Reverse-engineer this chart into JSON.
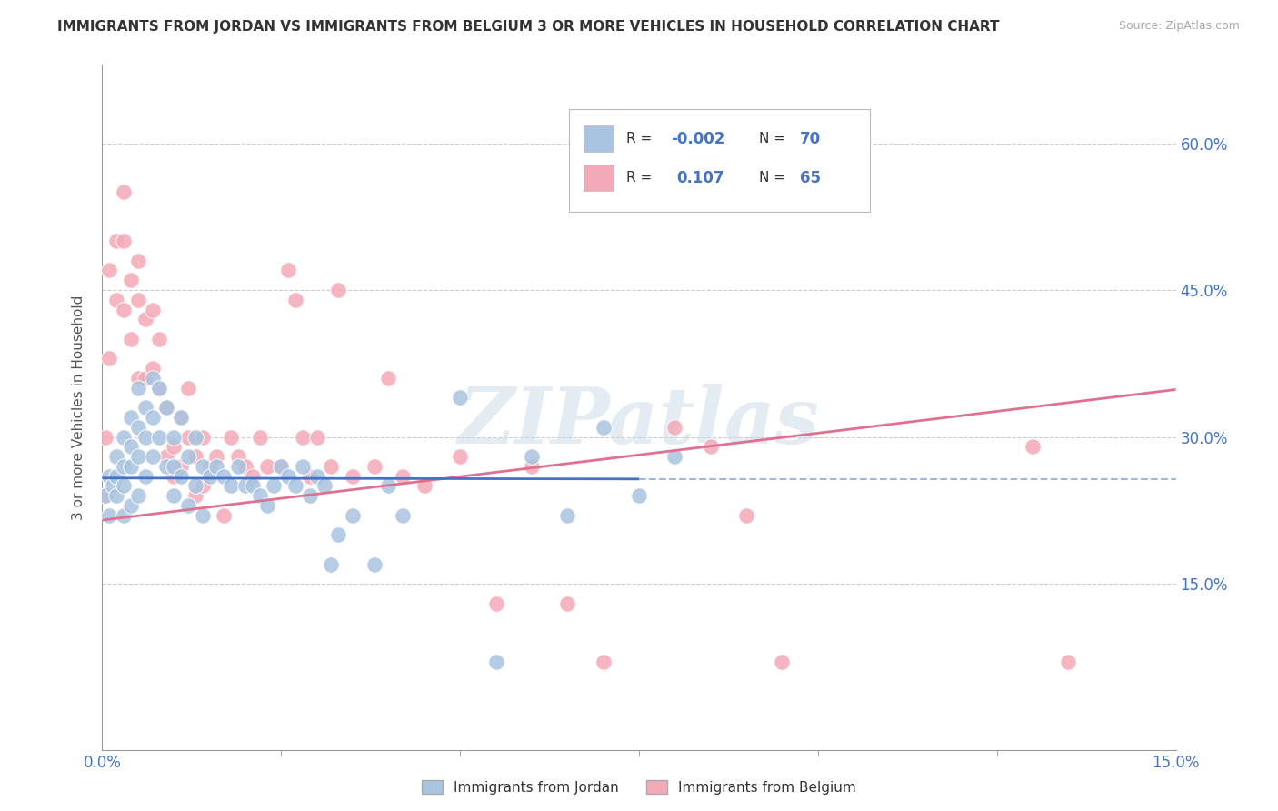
{
  "title": "IMMIGRANTS FROM JORDAN VS IMMIGRANTS FROM BELGIUM 3 OR MORE VEHICLES IN HOUSEHOLD CORRELATION CHART",
  "source": "Source: ZipAtlas.com",
  "ylabel": "3 or more Vehicles in Household",
  "y_tick_labels": [
    "15.0%",
    "30.0%",
    "45.0%",
    "60.0%"
  ],
  "y_tick_positions": [
    0.15,
    0.3,
    0.45,
    0.6
  ],
  "xlim": [
    0.0,
    0.15
  ],
  "ylim": [
    -0.02,
    0.68
  ],
  "jordan_color": "#a8c4e0",
  "belgium_color": "#f4a9b8",
  "jordan_R": "-0.002",
  "jordan_N": "70",
  "belgium_R": "0.107",
  "belgium_N": "65",
  "watermark": "ZIPatlas",
  "legend_jordan": "Immigrants from Jordan",
  "legend_belgium": "Immigrants from Belgium",
  "jordan_points_x": [
    0.0005,
    0.001,
    0.001,
    0.0015,
    0.002,
    0.002,
    0.002,
    0.003,
    0.003,
    0.003,
    0.003,
    0.004,
    0.004,
    0.004,
    0.004,
    0.005,
    0.005,
    0.005,
    0.005,
    0.006,
    0.006,
    0.006,
    0.007,
    0.007,
    0.007,
    0.008,
    0.008,
    0.009,
    0.009,
    0.01,
    0.01,
    0.01,
    0.011,
    0.011,
    0.012,
    0.012,
    0.013,
    0.013,
    0.014,
    0.014,
    0.015,
    0.016,
    0.017,
    0.018,
    0.019,
    0.02,
    0.021,
    0.022,
    0.023,
    0.024,
    0.025,
    0.026,
    0.027,
    0.028,
    0.029,
    0.03,
    0.031,
    0.032,
    0.033,
    0.035,
    0.038,
    0.04,
    0.042,
    0.05,
    0.055,
    0.06,
    0.065,
    0.07,
    0.075,
    0.08
  ],
  "jordan_points_y": [
    0.24,
    0.26,
    0.22,
    0.25,
    0.28,
    0.26,
    0.24,
    0.3,
    0.27,
    0.25,
    0.22,
    0.32,
    0.29,
    0.27,
    0.23,
    0.35,
    0.31,
    0.28,
    0.24,
    0.33,
    0.3,
    0.26,
    0.36,
    0.32,
    0.28,
    0.35,
    0.3,
    0.33,
    0.27,
    0.3,
    0.27,
    0.24,
    0.32,
    0.26,
    0.28,
    0.23,
    0.3,
    0.25,
    0.27,
    0.22,
    0.26,
    0.27,
    0.26,
    0.25,
    0.27,
    0.25,
    0.25,
    0.24,
    0.23,
    0.25,
    0.27,
    0.26,
    0.25,
    0.27,
    0.24,
    0.26,
    0.25,
    0.17,
    0.2,
    0.22,
    0.17,
    0.25,
    0.22,
    0.34,
    0.07,
    0.28,
    0.22,
    0.31,
    0.24,
    0.28
  ],
  "belgium_points_x": [
    0.0003,
    0.0005,
    0.001,
    0.001,
    0.002,
    0.002,
    0.003,
    0.003,
    0.003,
    0.004,
    0.004,
    0.005,
    0.005,
    0.005,
    0.006,
    0.006,
    0.007,
    0.007,
    0.008,
    0.008,
    0.009,
    0.009,
    0.01,
    0.01,
    0.011,
    0.011,
    0.012,
    0.012,
    0.013,
    0.013,
    0.014,
    0.014,
    0.015,
    0.016,
    0.017,
    0.018,
    0.019,
    0.02,
    0.021,
    0.022,
    0.023,
    0.025,
    0.026,
    0.027,
    0.028,
    0.029,
    0.03,
    0.032,
    0.033,
    0.035,
    0.038,
    0.04,
    0.042,
    0.045,
    0.05,
    0.055,
    0.06,
    0.065,
    0.07,
    0.08,
    0.085,
    0.09,
    0.095,
    0.13,
    0.135
  ],
  "belgium_points_y": [
    0.24,
    0.3,
    0.47,
    0.38,
    0.5,
    0.44,
    0.55,
    0.5,
    0.43,
    0.46,
    0.4,
    0.48,
    0.44,
    0.36,
    0.42,
    0.36,
    0.43,
    0.37,
    0.4,
    0.35,
    0.33,
    0.28,
    0.29,
    0.26,
    0.32,
    0.27,
    0.35,
    0.3,
    0.28,
    0.24,
    0.3,
    0.25,
    0.27,
    0.28,
    0.22,
    0.3,
    0.28,
    0.27,
    0.26,
    0.3,
    0.27,
    0.27,
    0.47,
    0.44,
    0.3,
    0.26,
    0.3,
    0.27,
    0.45,
    0.26,
    0.27,
    0.36,
    0.26,
    0.25,
    0.28,
    0.13,
    0.27,
    0.13,
    0.07,
    0.31,
    0.29,
    0.22,
    0.07,
    0.29,
    0.07
  ],
  "jordan_line_color": "#4472c4",
  "jordan_line_dash_color": "#a0b8d8",
  "belgium_line_color": "#e07090",
  "background_color": "#ffffff",
  "grid_color": "#cccccc",
  "title_color": "#333333",
  "axis_label_color": "#4472c4"
}
